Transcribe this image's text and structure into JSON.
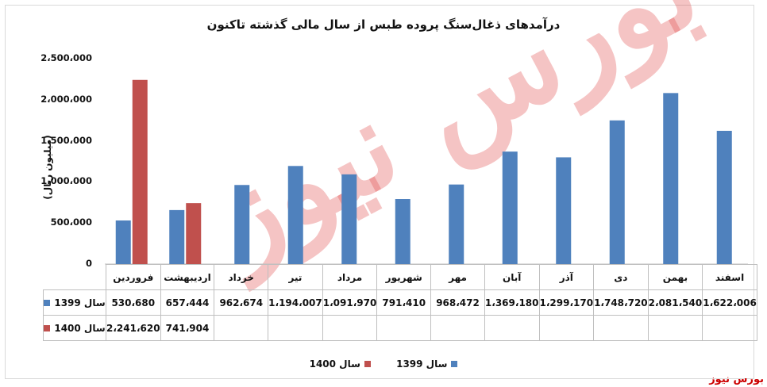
{
  "title": "درآمدهای ذغال‌سنگ پروده طبس از سال مالی گذشته تاکنون",
  "watermark": "بورس نیوز",
  "source": "بورس نیوز",
  "colors": {
    "s1399": "#4f81bd",
    "s1400": "#c0504d"
  },
  "chart_data": {
    "type": "bar",
    "title": "درآمدهای ذغال‌سنگ پروده طبس از سال مالی گذشته تاکنون",
    "ylabel": "(میلیون ریال)",
    "ylim": [
      0,
      2500000
    ],
    "yticks": [
      0,
      500000,
      1000000,
      1500000,
      2000000,
      2500000
    ],
    "ytick_labels": [
      "0",
      "500،000",
      "1،000،000",
      "1،500،000",
      "2،000،000",
      "2،500،000"
    ],
    "categories": [
      "فروردین",
      "اردیبهشت",
      "خرداد",
      "تیر",
      "مرداد",
      "شهریور",
      "مهر",
      "آبان",
      "آذر",
      "دی",
      "بهمن",
      "اسفند"
    ],
    "series": [
      {
        "name": "سال 1399",
        "color": "#4f81bd",
        "values": [
          530680,
          657444,
          962674,
          1194007,
          1091970,
          791410,
          968472,
          1369180,
          1299170,
          1748720,
          2081540,
          1622006
        ],
        "labels": [
          "530،680",
          "657،444",
          "962،674",
          "1،194،007",
          "1،091،970",
          "791،410",
          "968،472",
          "1،369،180",
          "1،299،170",
          "1،748،720",
          "2،081،540",
          "1،622،006"
        ]
      },
      {
        "name": "سال 1400",
        "color": "#c0504d",
        "values": [
          2241620,
          741904,
          null,
          null,
          null,
          null,
          null,
          null,
          null,
          null,
          null,
          null
        ],
        "labels": [
          "2،241،620",
          "741،904",
          "",
          "",
          "",
          "",
          "",
          "",
          "",
          "",
          "",
          ""
        ]
      }
    ],
    "grid": false,
    "legend": "bottom"
  }
}
